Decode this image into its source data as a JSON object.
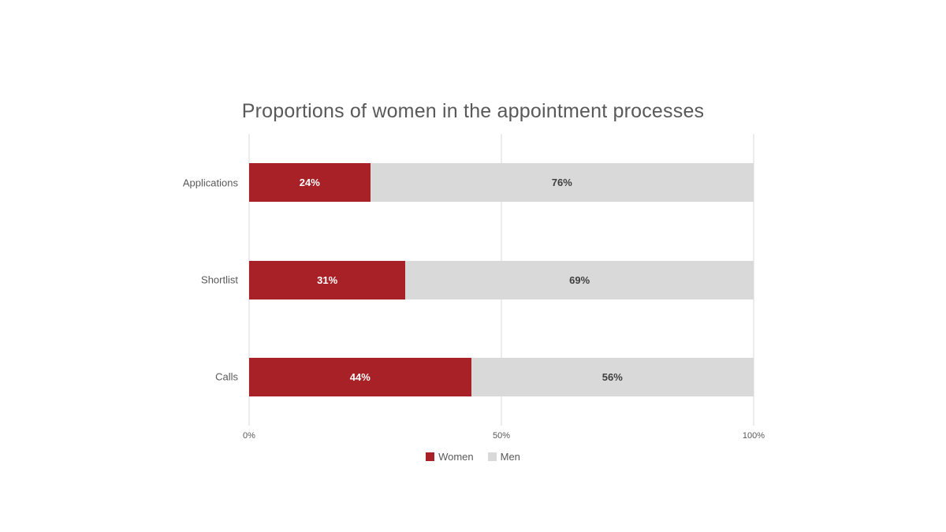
{
  "chart_data": {
    "type": "bar",
    "orientation": "horizontal",
    "stacked": true,
    "title": "Proportions of women in the appointment processes",
    "title_color": "#595959",
    "categories": [
      "Applications",
      "Shortlist",
      "Calls"
    ],
    "series": [
      {
        "name": "Women",
        "color": "#A72126",
        "label_color": "#FFFFFF",
        "values": [
          24,
          31,
          44
        ],
        "data_labels": [
          "24%",
          "31%",
          "44%"
        ]
      },
      {
        "name": "Men",
        "color": "#D9D9D9",
        "label_color": "#3F3F3F",
        "values": [
          76,
          69,
          56
        ],
        "data_labels": [
          "76%",
          "69%",
          "56%"
        ]
      }
    ],
    "x_axis": {
      "range": [
        0,
        100
      ],
      "tick_values": [
        0,
        50,
        100
      ],
      "ticks": [
        "0%",
        "50%",
        "100%"
      ]
    },
    "grid": "vertical",
    "gridline_color": "#D9D9D9",
    "axis_text_color": "#595959",
    "legend": {
      "position": "bottom",
      "entries": [
        {
          "label": "Women",
          "color": "#A72126"
        },
        {
          "label": "Men",
          "color": "#D9D9D9"
        }
      ]
    }
  }
}
